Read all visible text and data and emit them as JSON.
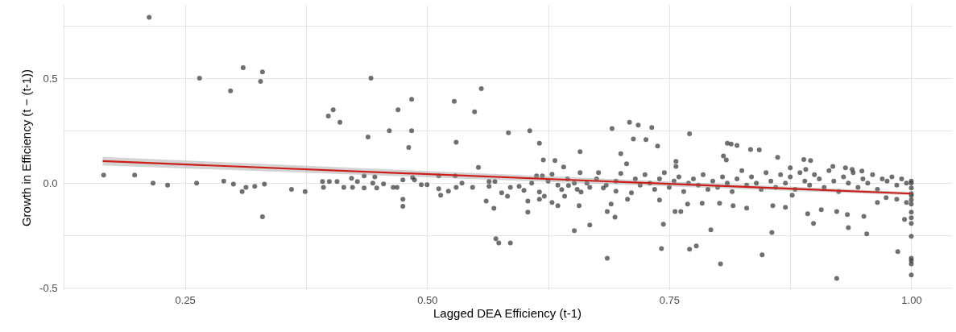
{
  "chart_data": {
    "type": "scatter",
    "xlabel": "Lagged DEA Efficiency (t-1)",
    "ylabel": "Growth in Efficiency (t − (t-1))",
    "xlim": [
      0.123,
      1.042
    ],
    "ylim": [
      -0.51,
      0.85
    ],
    "xticks": [
      {
        "value": 0.125,
        "label": null
      },
      {
        "value": 0.25,
        "label": "0.25"
      },
      {
        "value": 0.375,
        "label": null
      },
      {
        "value": 0.5,
        "label": "0.50"
      },
      {
        "value": 0.625,
        "label": null
      },
      {
        "value": 0.75,
        "label": "0.75"
      },
      {
        "value": 0.875,
        "label": null
      },
      {
        "value": 1.0,
        "label": "1.00"
      }
    ],
    "yticks": [
      {
        "value": -0.5,
        "label": "-0.5"
      },
      {
        "value": -0.25,
        "label": null
      },
      {
        "value": 0,
        "label": "0.0"
      },
      {
        "value": 0.25,
        "label": null
      },
      {
        "value": 0.5,
        "label": "0.5"
      },
      {
        "value": 0.75,
        "label": null
      }
    ],
    "grid": true,
    "line_style": "solid",
    "series": [
      {
        "type": "scatter",
        "marker": "circle",
        "color": "#404040",
        "x": [
          0.166,
          0.198,
          0.213,
          0.217,
          0.232,
          0.262,
          0.265,
          0.29,
          0.297,
          0.31,
          0.3,
          0.33,
          0.328,
          0.33,
          0.309,
          0.313,
          0.322,
          0.332,
          0.36,
          0.374,
          0.442,
          0.398,
          0.403,
          0.41,
          0.439,
          0.461,
          0.47,
          0.484,
          0.484,
          0.481,
          0.528,
          0.556,
          0.549,
          0.53,
          0.553,
          0.584,
          0.606,
          0.616,
          0.62,
          0.632,
          0.641,
          0.658,
          0.691,
          0.7,
          0.709,
          0.392,
          0.393,
          0.399,
          0.407,
          0.414,
          0.422,
          0.423,
          0.428,
          0.435,
          0.435,
          0.444,
          0.446,
          0.448,
          0.455,
          0.465,
          0.469,
          0.475,
          0.475,
          0.475,
          0.485,
          0.487,
          0.494,
          0.5,
          0.512,
          0.512,
          0.514,
          0.522,
          0.529,
          0.53,
          0.536,
          0.547,
          0.561,
          0.564,
          0.564,
          0.569,
          0.571,
          0.574,
          0.586,
          0.57,
          0.577,
          0.583,
          0.586,
          0.595,
          0.6,
          0.604,
          0.604,
          0.608,
          0.613,
          0.616,
          0.616,
          0.619,
          0.621,
          0.629,
          0.635,
          0.629,
          0.639,
          0.642,
          0.646,
          0.652,
          0.652,
          0.657,
          0.658,
          0.659,
          0.668,
          0.668,
          0.677,
          0.682,
          0.686,
          0.686,
          0.69,
          0.694,
          0.695,
          0.7,
          0.707,
          0.706,
          0.713,
          0.711,
          0.718,
          0.732,
          0.726,
          0.738,
          0.771,
          0.757,
          0.757,
          0.81,
          0.814,
          0.82,
          0.806,
          0.809,
          0.834,
          0.843,
          0.862,
          0.889,
          0.896,
          0.919,
          0.875,
          0.891,
          0.932,
          0.939,
          0.949,
          0.74,
          0.744,
          0.742,
          0.756,
          0.762,
          0.771,
          0.778,
          0.769,
          0.784,
          0.793,
          0.802,
          0.803,
          0.816,
          0.83,
          0.846,
          0.856,
          0.857,
          0.87,
          0.877,
          0.893,
          0.899,
          0.907,
          0.923,
          0.923,
          0.934,
          0.935,
          0.951,
          0.954,
          0.965,
          0.974,
          0.985,
          0.986,
          0.993,
          0.995,
          1.0,
          1.0,
          1.0,
          1.0,
          1.0,
          1.0,
          1.0,
          1.0,
          1.0,
          1.0,
          1.0,
          1.0,
          0.715,
          0.72,
          0.725,
          0.73,
          0.735,
          0.74,
          0.745,
          0.75,
          0.755,
          0.76,
          0.765,
          0.77,
          0.775,
          0.78,
          0.785,
          0.79,
          0.795,
          0.8,
          0.805,
          0.81,
          0.815,
          0.82,
          0.825,
          0.83,
          0.835,
          0.84,
          0.845,
          0.85,
          0.855,
          0.86,
          0.865,
          0.87,
          0.875,
          0.88,
          0.885,
          0.89,
          0.895,
          0.9,
          0.905,
          0.91,
          0.915,
          0.92,
          0.925,
          0.93,
          0.935,
          0.94,
          0.945,
          0.95,
          0.955,
          0.96,
          0.965,
          0.97,
          0.975,
          0.98,
          0.985,
          0.99,
          0.995,
          1.0,
          1.0,
          1.0,
          0.625,
          0.635,
          0.645,
          0.655,
          0.665,
          0.675,
          0.685,
          0.695
        ],
        "values": [
          0.038,
          0.038,
          0.79,
          0.0,
          -0.01,
          0.0,
          0.5,
          0.01,
          0.44,
          0.55,
          -0.005,
          0.53,
          0.485,
          -0.16,
          -0.04,
          -0.02,
          -0.015,
          -0.005,
          -0.03,
          -0.04,
          0.5,
          0.32,
          0.35,
          0.29,
          0.22,
          0.25,
          0.35,
          0.4,
          0.25,
          0.17,
          0.39,
          0.45,
          0.34,
          0.195,
          0.075,
          0.24,
          0.25,
          0.19,
          0.11,
          0.108,
          0.077,
          0.15,
          0.26,
          0.14,
          0.29,
          0.008,
          -0.02,
          0.008,
          0.008,
          -0.02,
          0.023,
          -0.02,
          0.008,
          0.035,
          -0.023,
          0.0,
          0.03,
          -0.023,
          -0.004,
          -0.02,
          -0.02,
          0.015,
          -0.077,
          -0.11,
          0.027,
          0.015,
          -0.008,
          -0.008,
          0.035,
          -0.027,
          -0.058,
          -0.038,
          0.035,
          -0.02,
          0.0,
          -0.02,
          -0.085,
          0.008,
          -0.015,
          -0.12,
          -0.265,
          -0.285,
          -0.285,
          0.008,
          -0.046,
          -0.062,
          -0.02,
          -0.015,
          -0.035,
          -0.085,
          -0.138,
          0.0,
          0.035,
          -0.042,
          -0.077,
          0.035,
          -0.062,
          -0.092,
          -0.108,
          0.042,
          -0.031,
          -0.062,
          -0.012,
          0.0,
          -0.227,
          -0.108,
          0.05,
          -0.042,
          -0.2,
          -0.02,
          0.05,
          -0.023,
          -0.135,
          -0.358,
          -0.1,
          -0.162,
          -0.038,
          0.046,
          -0.077,
          0.092,
          0.21,
          -0.046,
          0.277,
          0.265,
          0.207,
          0.177,
          0.235,
          0.104,
          0.08,
          0.19,
          0.186,
          0.18,
          0.13,
          0.11,
          0.16,
          0.158,
          0.123,
          0.112,
          0.108,
          0.08,
          0.073,
          0.065,
          0.073,
          0.065,
          0.058,
          -0.081,
          -0.196,
          -0.312,
          -0.135,
          -0.135,
          -0.315,
          -0.3,
          -0.1,
          -0.096,
          -0.223,
          -0.096,
          -0.385,
          -0.108,
          -0.119,
          -0.342,
          -0.235,
          -0.108,
          -0.115,
          -0.058,
          -0.146,
          -0.192,
          -0.127,
          -0.135,
          -0.454,
          -0.15,
          -0.212,
          -0.158,
          -0.242,
          -0.092,
          -0.069,
          -0.077,
          -0.327,
          -0.173,
          -0.092,
          0.0,
          -0.023,
          -0.05,
          -0.1,
          -0.138,
          -0.165,
          -0.192,
          -0.254,
          -0.358,
          -0.37,
          -0.385,
          -0.438,
          0.02,
          -0.01,
          0.04,
          0.0,
          -0.03,
          0.02,
          0.05,
          -0.02,
          0.01,
          0.03,
          -0.04,
          0.0,
          0.02,
          -0.01,
          0.04,
          -0.03,
          0.01,
          -0.02,
          0.03,
          0.0,
          -0.04,
          0.02,
          0.06,
          -0.01,
          0.03,
          0.0,
          -0.03,
          0.05,
          0.01,
          -0.02,
          0.04,
          0.0,
          0.03,
          -0.03,
          0.05,
          0.01,
          -0.01,
          0.04,
          0.02,
          -0.02,
          0.06,
          0.01,
          -0.04,
          0.03,
          0.0,
          0.05,
          -0.02,
          0.02,
          0.0,
          0.04,
          -0.03,
          0.02,
          0.01,
          0.03,
          -0.01,
          0.02,
          0.0,
          0.01,
          -0.06,
          -0.08,
          0.01,
          -0.01,
          0.02,
          -0.03,
          0.0,
          0.02,
          -0.01,
          0.01
        ]
      },
      {
        "type": "line",
        "color": "#cc1f1a",
        "x": [
          0.165,
          1.0
        ],
        "values": [
          0.105,
          -0.05
        ],
        "lower": [
          0.085,
          -0.058
        ],
        "upper": [
          0.125,
          -0.042
        ]
      }
    ]
  }
}
